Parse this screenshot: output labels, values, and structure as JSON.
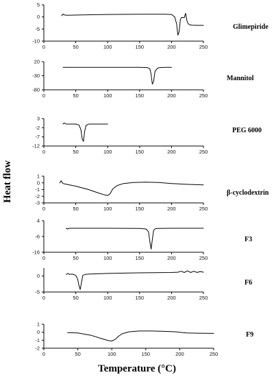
{
  "figure": {
    "ylabel": "Heat flow",
    "xlabel": "Temperature (°C)"
  },
  "chart_data": [
    {
      "type": "line",
      "title": "Glimepiride",
      "xlim": [
        0,
        250
      ],
      "ylim": [
        -10,
        5
      ],
      "xticks": [
        0,
        50,
        100,
        150,
        200,
        250
      ],
      "yticks": [
        5,
        0,
        -5,
        -10
      ],
      "series": [
        {
          "x": [
            28,
            30,
            32,
            36,
            60,
            100,
            150,
            190,
            200,
            205,
            208,
            210,
            212,
            214,
            216,
            220,
            222,
            224,
            226,
            228,
            232,
            240,
            250
          ],
          "y": [
            0.5,
            1.2,
            0.8,
            0.7,
            0.8,
            1.0,
            1.1,
            1.1,
            1.0,
            0.0,
            -3.0,
            -7.5,
            -6.0,
            -1.0,
            -0.2,
            -0.3,
            1.5,
            -1.5,
            -2.8,
            -3.2,
            -3.4,
            -3.5,
            -3.5
          ]
        }
      ]
    },
    {
      "type": "line",
      "title": "Mannitol",
      "xlim": [
        0,
        250
      ],
      "ylim": [
        -80,
        20
      ],
      "xticks": [
        0,
        50,
        100,
        150,
        200,
        250
      ],
      "yticks": [
        20,
        -30,
        -80
      ],
      "series": [
        {
          "x": [
            30,
            100,
            150,
            162,
            166,
            168,
            170,
            172,
            174,
            178,
            182,
            190,
            200
          ],
          "y": [
            0,
            0,
            0,
            -1,
            -5,
            -25,
            -60,
            -50,
            -15,
            -3,
            -1,
            0,
            0
          ]
        }
      ]
    },
    {
      "type": "line",
      "title": "PEG 6000",
      "xlim": [
        0,
        250
      ],
      "ylim": [
        -12,
        3
      ],
      "xticks": [
        0,
        50,
        100,
        150,
        200,
        250
      ],
      "yticks": [
        3,
        -2,
        -7,
        -12
      ],
      "series": [
        {
          "x": [
            30,
            32,
            35,
            50,
            55,
            58,
            60,
            62,
            64,
            66,
            70,
            80,
            100
          ],
          "y": [
            0,
            0.6,
            0,
            0,
            -0.5,
            -3,
            -8,
            -9.5,
            -4,
            -0.8,
            0,
            0,
            0
          ]
        }
      ]
    },
    {
      "type": "line",
      "title": "β-cyclodextrin",
      "xlim": [
        0,
        250
      ],
      "ylim": [
        -3,
        1
      ],
      "xticks": [
        0,
        50,
        100,
        150,
        200,
        250
      ],
      "yticks": [
        1,
        0,
        -1,
        -2,
        -3
      ],
      "series": [
        {
          "x": [
            25,
            27,
            30,
            35,
            50,
            70,
            85,
            95,
            100,
            104,
            108,
            115,
            125,
            140,
            160,
            180,
            200,
            220,
            250
          ],
          "y": [
            0.0,
            0.3,
            -0.1,
            -0.2,
            -0.5,
            -1.0,
            -1.5,
            -1.8,
            -1.9,
            -1.6,
            -0.9,
            -0.4,
            -0.1,
            0.05,
            0.1,
            0.05,
            -0.1,
            -0.2,
            -0.3
          ]
        }
      ]
    },
    {
      "type": "line",
      "title": "F3",
      "xlim": [
        0,
        250
      ],
      "ylim": [
        -16,
        4
      ],
      "xticks": [
        0,
        50,
        100,
        150,
        200,
        250
      ],
      "yticks": [
        4,
        -6,
        -16
      ],
      "series": [
        {
          "x": [
            35,
            37,
            40,
            100,
            150,
            160,
            164,
            166,
            168,
            170,
            172,
            175,
            180,
            200,
            250
          ],
          "y": [
            -0.8,
            -1.2,
            -0.8,
            -0.8,
            -0.9,
            -1.2,
            -3,
            -9,
            -14,
            -8,
            -2,
            -1,
            -0.9,
            -0.8,
            -0.8
          ]
        }
      ]
    },
    {
      "type": "line",
      "title": "F6",
      "xlim": [
        0,
        250
      ],
      "ylim": [
        -5,
        2.5
      ],
      "xticks": [
        0,
        50,
        100,
        150,
        200,
        250
      ],
      "yticks": [
        0,
        -5
      ],
      "series": [
        {
          "x": [
            35,
            38,
            40,
            45,
            50,
            53,
            55,
            57,
            59,
            61,
            65,
            70,
            100,
            150,
            200,
            210,
            215,
            220,
            225,
            230,
            235,
            240,
            245,
            250
          ],
          "y": [
            0.5,
            0.8,
            0.5,
            0.6,
            0.2,
            -1.0,
            -3.0,
            -4.2,
            -2.0,
            0.2,
            0.5,
            0.6,
            0.8,
            1.0,
            1.1,
            1.2,
            1.5,
            1.1,
            1.6,
            1.1,
            1.5,
            1.1,
            1.4,
            1.2
          ]
        }
      ]
    },
    {
      "type": "line",
      "title": "F9",
      "xlim": [
        0,
        250
      ],
      "ylim": [
        -2,
        1
      ],
      "xticks": [
        0,
        50,
        100,
        150,
        200,
        250
      ],
      "yticks": [
        1,
        0,
        -1,
        -2
      ],
      "series": [
        {
          "x": [
            35,
            50,
            70,
            85,
            95,
            100,
            105,
            110,
            115,
            125,
            140,
            160,
            180,
            195,
            200,
            210,
            225,
            250
          ],
          "y": [
            -0.05,
            -0.1,
            -0.4,
            -0.8,
            -1.05,
            -1.1,
            -0.9,
            -0.5,
            -0.2,
            0.05,
            0.15,
            0.15,
            0.1,
            0.05,
            0.0,
            -0.1,
            -0.12,
            -0.15
          ]
        }
      ]
    }
  ]
}
